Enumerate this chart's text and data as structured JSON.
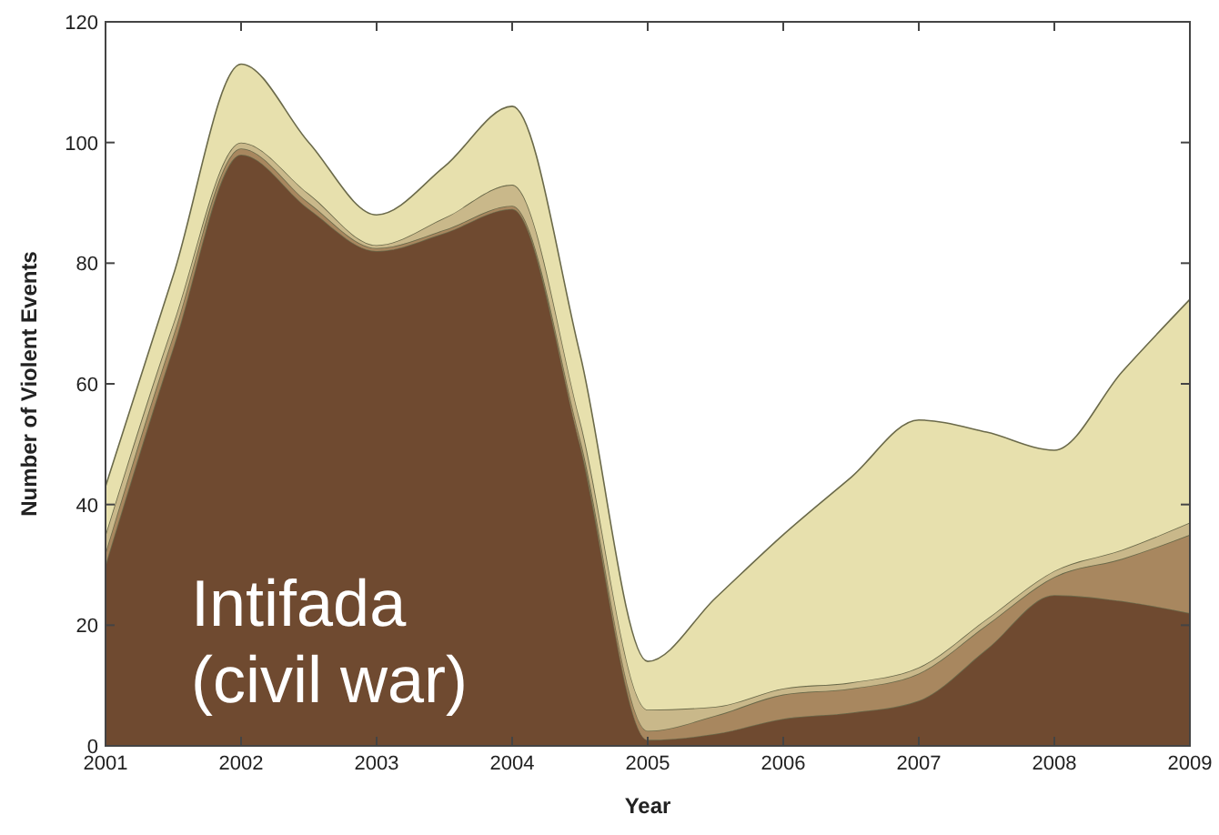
{
  "chart_data": {
    "type": "area",
    "stacked": true,
    "xlabel": "Year",
    "ylabel": "Number of Violent Events",
    "x": [
      2001,
      2001.5,
      2002,
      2002.5,
      2003,
      2003.5,
      2004,
      2004.5,
      2005,
      2005.5,
      2006,
      2006.5,
      2007,
      2007.5,
      2008,
      2008.5,
      2009
    ],
    "series": [
      {
        "color": "#6f4a30",
        "values": [
          30,
          66,
          98,
          89,
          82,
          85,
          89,
          50,
          1,
          2,
          4.5,
          5.5,
          7.5,
          16,
          25,
          24,
          22
        ]
      },
      {
        "color": "#a8875f",
        "values": [
          2,
          2,
          1,
          1,
          0.5,
          0.5,
          0.5,
          1,
          1.5,
          3,
          4,
          4,
          4.5,
          4,
          3,
          7,
          13
        ]
      },
      {
        "color": "#c9b88a",
        "values": [
          3,
          2,
          1,
          1.5,
          0.5,
          2,
          3.5,
          3,
          3.5,
          1.5,
          1,
          1,
          1,
          1,
          1,
          1.5,
          2
        ]
      },
      {
        "color": "#e7e0ad",
        "values": [
          8,
          8,
          13,
          8.5,
          5,
          8.5,
          13,
          11,
          8,
          18,
          25.5,
          34,
          41,
          31,
          20,
          29.5,
          37
        ]
      }
    ],
    "xlim": [
      2001,
      2009
    ],
    "xticks": [
      2001,
      2002,
      2003,
      2004,
      2005,
      2006,
      2007,
      2008,
      2009
    ],
    "ylim": [
      0,
      120
    ],
    "yticks": [
      0,
      20,
      40,
      60,
      80,
      100,
      120
    ],
    "annotations": [
      "Intifada (civil war)"
    ]
  }
}
